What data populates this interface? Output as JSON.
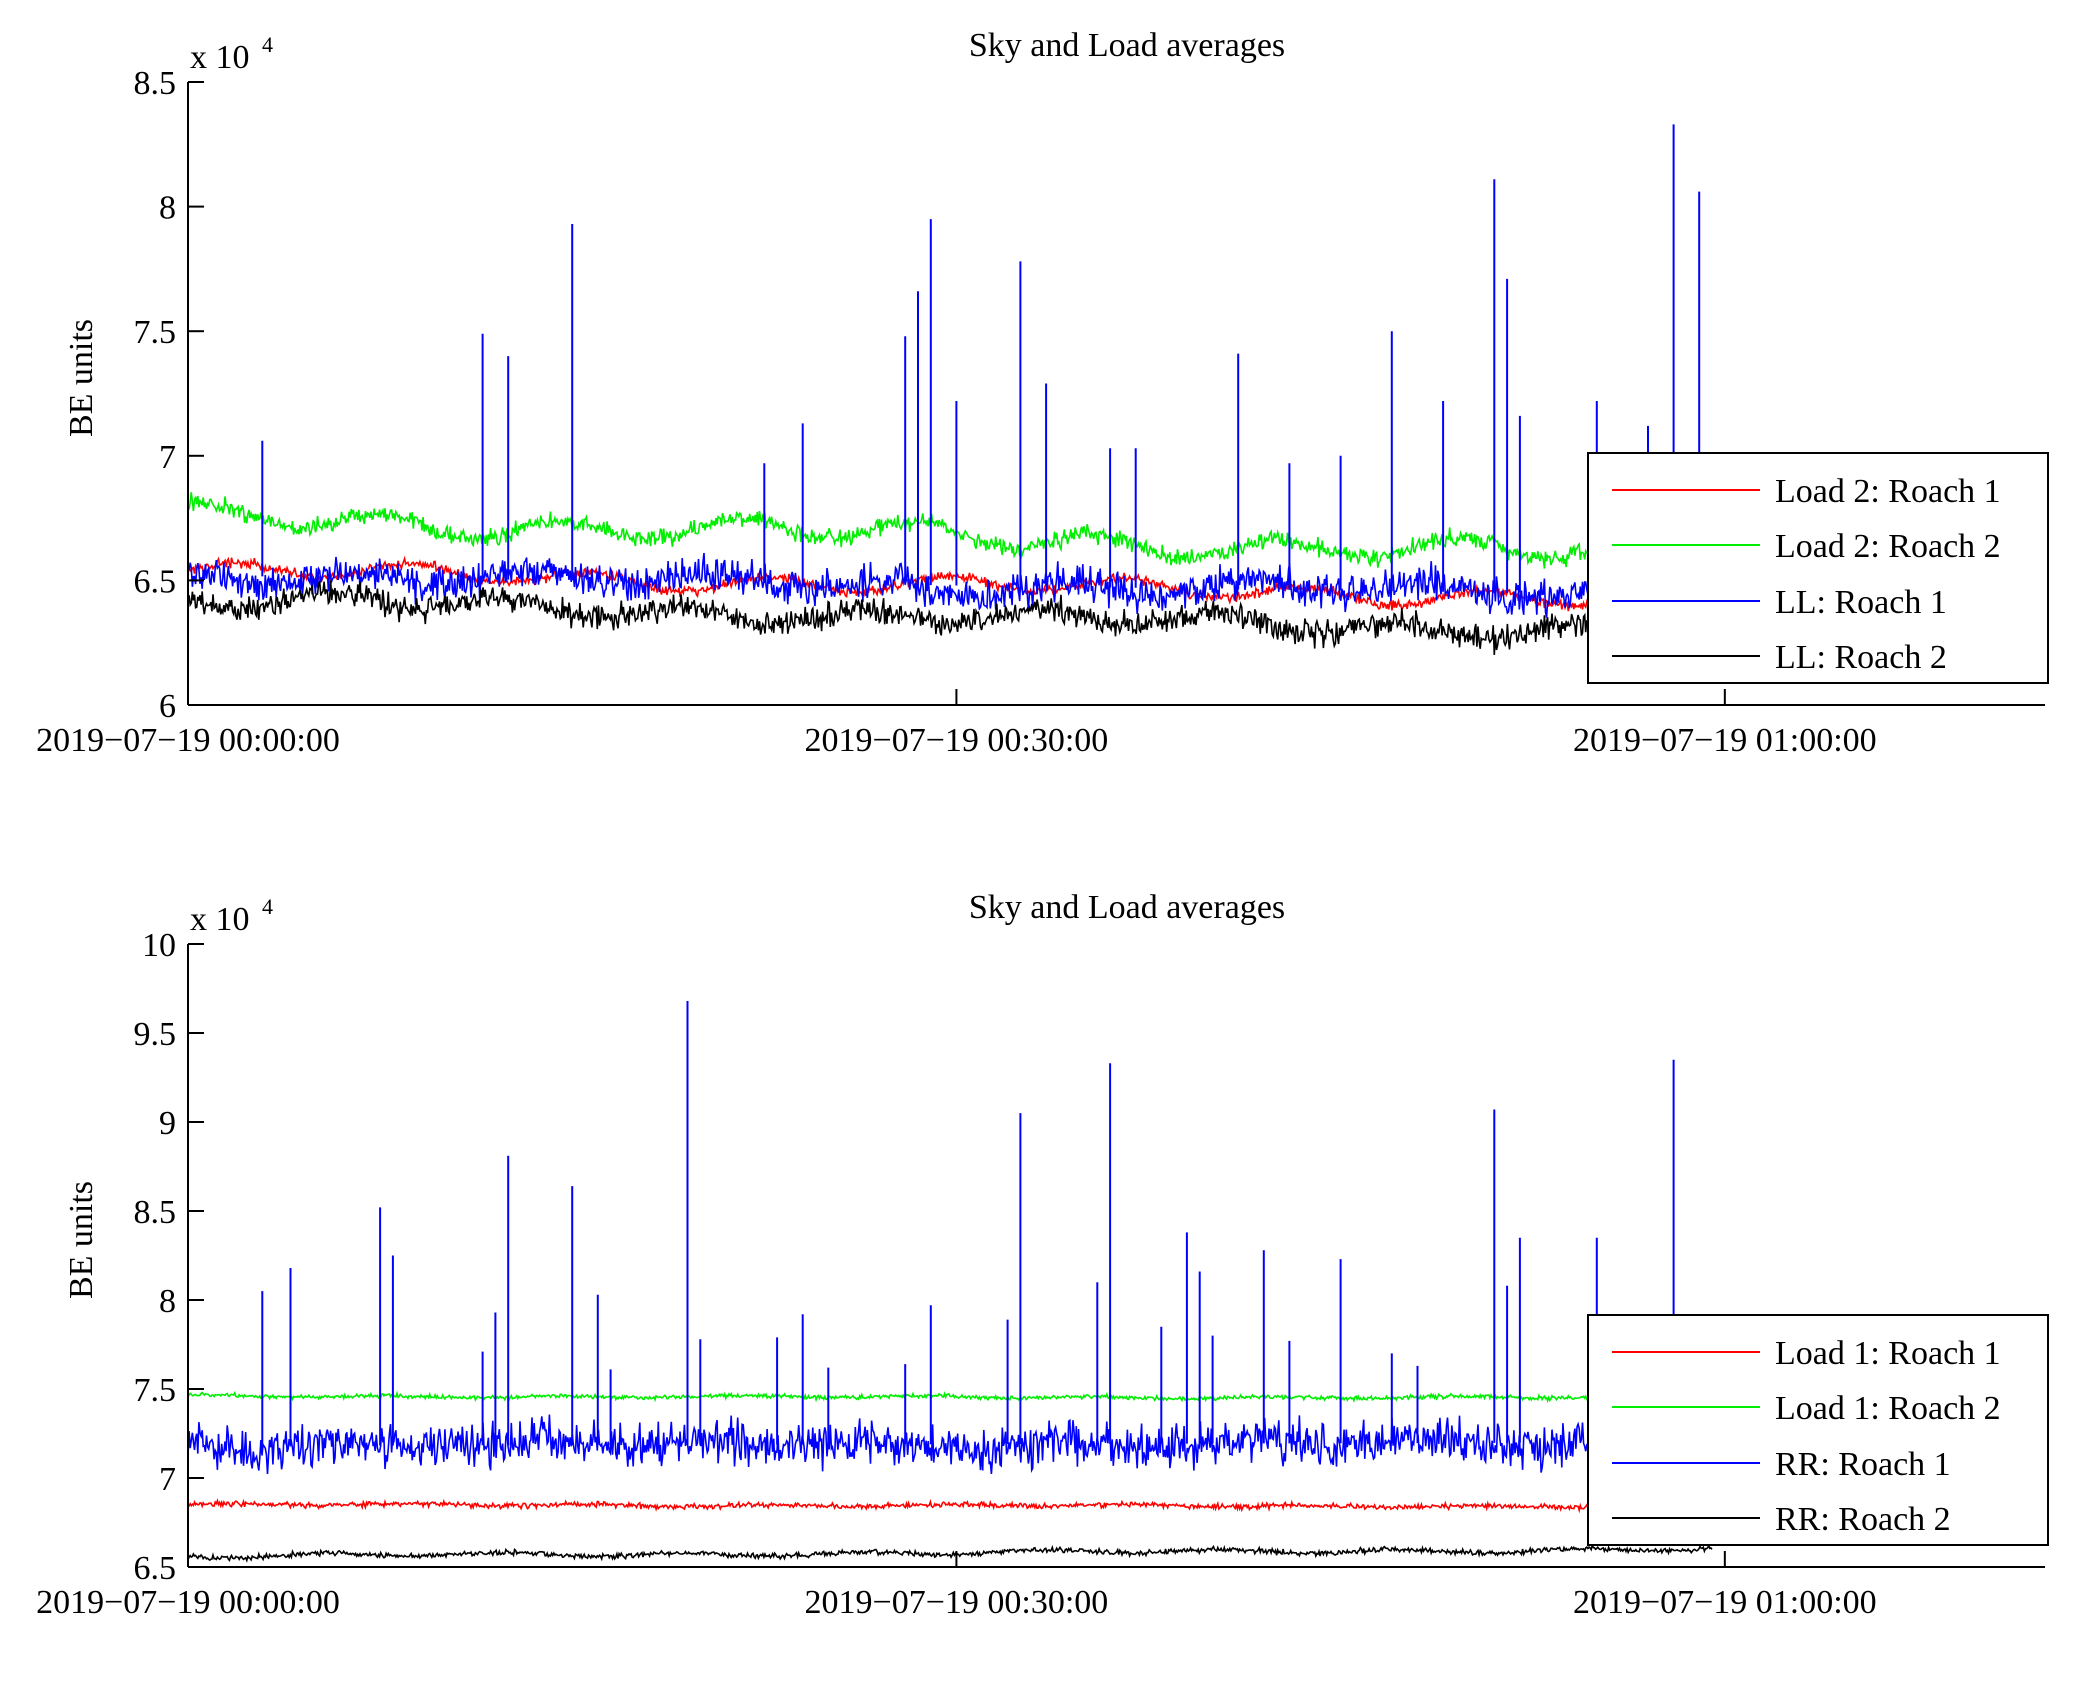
{
  "figure_title": "Sky and Load averages",
  "chart_data": [
    {
      "type": "line",
      "title": "Sky and Load averages",
      "xlabel": "",
      "ylabel": "BE units",
      "y_exponent_label": "x 10",
      "y_exponent_power": "4",
      "xlim_minutes": [
        0,
        72.5
      ],
      "ylim": [
        60000,
        85000
      ],
      "y_ticks": [
        60000,
        65000,
        70000,
        75000,
        80000,
        85000
      ],
      "y_tick_labels": [
        "6",
        "6.5",
        "7",
        "7.5",
        "8",
        "8.5"
      ],
      "x_ticks_minutes": [
        0,
        30,
        60
      ],
      "x_tick_labels": [
        "2019−07−19 00:00:00",
        "2019−07−19 00:30:00",
        "2019−07−19 01:00:00"
      ],
      "legend_position": "bottom-right",
      "series": [
        {
          "name": "Load 2: Roach 1",
          "color": "#ff0000",
          "base_start": 65400,
          "base_end": 64200,
          "wave": 300,
          "noise": 200
        },
        {
          "name": "Load 2: Roach 2",
          "color": "#00ee00",
          "base_start": 67600,
          "base_end": 65900,
          "wave": 400,
          "noise": 350
        },
        {
          "name": "LL: Roach 1",
          "color": "#0000ff",
          "base_start": 65200,
          "base_end": 64400,
          "wave": 300,
          "noise": 700,
          "spikes_minutes": [
            2.9,
            11.5,
            12.5,
            15.0,
            22.5,
            24.0,
            28.0,
            28.5,
            29.0,
            30.0,
            32.5,
            33.5,
            36.0,
            37.0,
            41.0,
            43.0,
            45.0,
            47.0,
            49.0,
            51.0,
            51.5,
            52.0,
            55.0,
            57.0,
            58.0,
            59.0
          ],
          "spikes_values": [
            70600,
            74900,
            74000,
            79300,
            69700,
            71300,
            74800,
            76600,
            79500,
            72200,
            77800,
            72900,
            70300,
            70300,
            74100,
            69700,
            70000,
            75000,
            72200,
            81100,
            77100,
            71600,
            72200,
            71200,
            83300,
            80600
          ]
        },
        {
          "name": "LL: Roach 2",
          "color": "#000000",
          "base_start": 64200,
          "base_end": 62900,
          "wave": 300,
          "noise": 500
        }
      ]
    },
    {
      "type": "line",
      "title": "Sky and Load averages",
      "xlabel": "",
      "ylabel": "BE units",
      "y_exponent_label": "x 10",
      "y_exponent_power": "4",
      "xlim_minutes": [
        0,
        72.5
      ],
      "ylim": [
        65000,
        100000
      ],
      "y_ticks": [
        65000,
        70000,
        75000,
        80000,
        85000,
        90000,
        95000,
        100000
      ],
      "y_tick_labels": [
        "6.5",
        "7",
        "7.5",
        "8",
        "8.5",
        "9",
        "9.5",
        "10"
      ],
      "x_ticks_minutes": [
        0,
        30,
        60
      ],
      "x_tick_labels": [
        "2019−07−19 00:00:00",
        "2019−07−19 00:30:00",
        "2019−07−19 01:00:00"
      ],
      "legend_position": "bottom-right",
      "series": [
        {
          "name": "Load 1: Roach 1",
          "color": "#ff0000",
          "base_start": 68500,
          "base_end": 68400,
          "wave": 50,
          "noise": 150
        },
        {
          "name": "Load 1: Roach 2",
          "color": "#00ee00",
          "base_start": 74600,
          "base_end": 74500,
          "wave": 50,
          "noise": 120
        },
        {
          "name": "RR: Roach 1",
          "color": "#0000ff",
          "base_start": 71800,
          "base_end": 72000,
          "wave": 200,
          "noise": 1200,
          "spikes_minutes": [
            2.9,
            4.0,
            7.5,
            8.0,
            11.5,
            12.0,
            12.5,
            15.0,
            16.0,
            16.5,
            19.5,
            20.0,
            23.0,
            24.0,
            25.0,
            28.0,
            29.0,
            32.0,
            32.5,
            35.5,
            36.0,
            38.0,
            39.0,
            39.5,
            40.0,
            42.0,
            43.0,
            45.0,
            47.0,
            48.0,
            51.0,
            51.5,
            52.0,
            55.0,
            58.0
          ],
          "spikes_values": [
            80500,
            81800,
            85200,
            82500,
            77100,
            79300,
            88100,
            86400,
            80300,
            76100,
            96800,
            77800,
            77900,
            79200,
            76200,
            76400,
            79700,
            78900,
            90500,
            81000,
            93300,
            78500,
            83800,
            81600,
            78000,
            82800,
            77700,
            82300,
            77000,
            76300,
            90700,
            80800,
            83500,
            83500,
            93500
          ]
        },
        {
          "name": "RR: Roach 2",
          "color": "#000000",
          "base_start": 65600,
          "base_end": 66000,
          "wave": 100,
          "noise": 150
        }
      ]
    }
  ]
}
